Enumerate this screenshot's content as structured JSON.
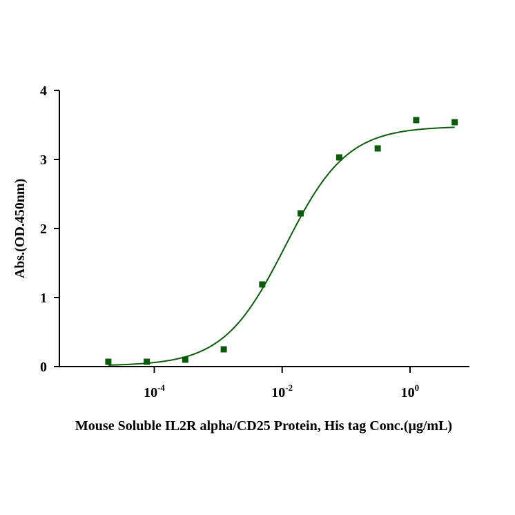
{
  "chart_data": {
    "type": "scatter",
    "xlabel": "Mouse Soluble IL2R alpha/CD25 Protein, His tag Conc.(µg/mL)",
    "ylabel": "Abs.(OD.450nm)",
    "xscale": "log",
    "xlim": [
      6.1e-06,
      4.8
    ],
    "ylim": [
      0,
      4
    ],
    "yticks": [
      {
        "value": 0,
        "label": "0"
      },
      {
        "value": 1,
        "label": "1"
      },
      {
        "value": 2,
        "label": "2"
      },
      {
        "value": 3,
        "label": "3"
      },
      {
        "value": 4,
        "label": "4"
      }
    ],
    "xticks": [
      {
        "value": 0.0001,
        "base": "10",
        "exp": "-4"
      },
      {
        "value": 0.01,
        "base": "10",
        "exp": "-2"
      },
      {
        "value": 1,
        "base": "10",
        "exp": "0"
      }
    ],
    "grid": false,
    "colors": {
      "series": "#0a5c0a",
      "axis": "#000000"
    },
    "series": [
      {
        "points": [
          {
            "x": 1.91e-05,
            "y": 0.07
          },
          {
            "x": 7.63e-05,
            "y": 0.07
          },
          {
            "x": 0.000305,
            "y": 0.1
          },
          {
            "x": 0.00122,
            "y": 0.25
          },
          {
            "x": 0.00488,
            "y": 1.19
          },
          {
            "x": 0.0195,
            "y": 2.22
          },
          {
            "x": 0.0781,
            "y": 3.03
          },
          {
            "x": 0.3125,
            "y": 3.16
          },
          {
            "x": 1.25,
            "y": 3.57
          },
          {
            "x": 5.0,
            "y": 3.54
          }
        ],
        "fit": {
          "model": "4PL",
          "bottom": 0.01,
          "top": 3.48,
          "ec50": 0.0112,
          "hill": 0.9
        }
      }
    ]
  }
}
